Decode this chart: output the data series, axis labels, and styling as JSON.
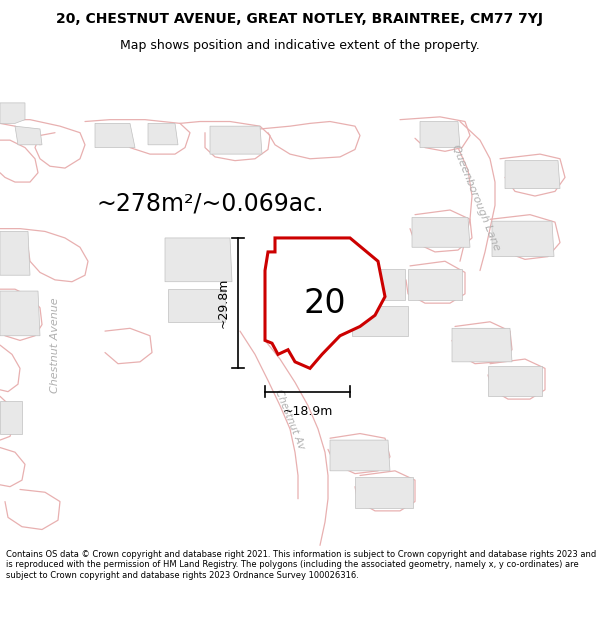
{
  "title_line1": "20, CHESTNUT AVENUE, GREAT NOTLEY, BRAINTREE, CM77 7YJ",
  "title_line2": "Map shows position and indicative extent of the property.",
  "area_text": "~278m²/~0.069ac.",
  "label_20": "20",
  "dim_height": "~29.8m",
  "dim_width": "~18.9m",
  "footer": "Contains OS data © Crown copyright and database right 2021. This information is subject to Crown copyright and database rights 2023 and is reproduced with the permission of HM Land Registry. The polygons (including the associated geometry, namely x, y co-ordinates) are subject to Crown copyright and database rights 2023 Ordnance Survey 100026316.",
  "bg_color": "#ffffff",
  "map_bg": "#ffffff",
  "plot_color_fill": "#ffffff",
  "plot_color_edge": "#cc0000",
  "building_fill": "#e8e8e8",
  "building_edge": "#c0c0c0",
  "pink_line": "#e8b0b0",
  "road_label_color": "#b0b0b0",
  "title_fontsize": 10,
  "subtitle_fontsize": 9,
  "area_fontsize": 17,
  "label_fontsize": 24,
  "dim_fontsize": 9,
  "footer_fontsize": 6.0
}
